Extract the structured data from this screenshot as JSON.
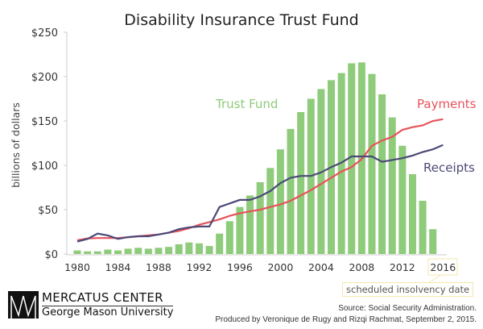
{
  "chart_data": {
    "type": "bar",
    "title": "Disability Insurance Trust Fund",
    "ylabel": "billions of dollars",
    "xlabel": "",
    "ylim": [
      0,
      250
    ],
    "yticks": [
      "$0",
      "$50",
      "$100",
      "$150",
      "$200",
      "$250"
    ],
    "ytick_values": [
      0,
      50,
      100,
      150,
      200,
      250
    ],
    "xticks": [
      "1980",
      "1984",
      "1988",
      "1992",
      "1996",
      "2000",
      "2004",
      "2008",
      "2012",
      "2016"
    ],
    "xtick_values": [
      1980,
      1984,
      1988,
      1992,
      1996,
      2000,
      2004,
      2008,
      2012,
      2016
    ],
    "grid": false,
    "series": [
      {
        "name": "Trust Fund",
        "type": "bar",
        "color": "#8ecb7a",
        "x": [
          1980,
          1981,
          1982,
          1983,
          1984,
          1985,
          1986,
          1987,
          1988,
          1989,
          1990,
          1991,
          1992,
          1993,
          1994,
          1995,
          1996,
          1997,
          1998,
          1999,
          2000,
          2001,
          2002,
          2003,
          2004,
          2005,
          2006,
          2007,
          2008,
          2009,
          2010,
          2011,
          2012,
          2013,
          2014,
          2015
        ],
        "values": [
          4,
          3,
          3,
          5,
          4,
          6,
          7,
          6,
          7,
          8,
          11,
          13,
          12,
          9,
          23,
          37,
          53,
          66,
          81,
          97,
          118,
          141,
          160,
          175,
          186,
          196,
          204,
          215,
          216,
          203,
          180,
          154,
          122,
          90,
          60,
          28
        ]
      },
      {
        "name": "Payments",
        "type": "line",
        "color": "#e8525a",
        "x": [
          1980,
          1981,
          1982,
          1983,
          1984,
          1985,
          1986,
          1987,
          1988,
          1989,
          1990,
          1991,
          1992,
          1993,
          1994,
          1995,
          1996,
          1997,
          1998,
          1999,
          2000,
          2001,
          2002,
          2003,
          2004,
          2005,
          2006,
          2007,
          2008,
          2009,
          2010,
          2011,
          2012,
          2013,
          2014,
          2015,
          2016
        ],
        "values": [
          15.5,
          17.5,
          18,
          18,
          18,
          19,
          20,
          21,
          22,
          24,
          26,
          29,
          33,
          36,
          39,
          43,
          46,
          48,
          50,
          53,
          56,
          60,
          66,
          72,
          79,
          86,
          93,
          98,
          107,
          122,
          128,
          132,
          140,
          143,
          145,
          150,
          152
        ]
      },
      {
        "name": "Receipts",
        "type": "line",
        "color": "#4b4a78",
        "x": [
          1980,
          1981,
          1982,
          1983,
          1984,
          1985,
          1986,
          1987,
          1988,
          1989,
          1990,
          1991,
          1992,
          1993,
          1994,
          1995,
          1996,
          1997,
          1998,
          1999,
          2000,
          2001,
          2002,
          2003,
          2004,
          2005,
          2006,
          2007,
          2008,
          2009,
          2010,
          2011,
          2012,
          2013,
          2014,
          2015,
          2016
        ],
        "values": [
          14,
          17,
          23,
          21,
          17,
          19,
          20,
          20,
          22,
          24,
          28,
          30,
          31,
          31,
          53,
          57,
          61,
          61,
          65,
          71,
          80,
          86,
          88,
          88,
          92,
          98,
          103,
          110,
          110,
          110,
          104,
          106,
          108,
          111,
          115,
          118,
          123
        ]
      }
    ],
    "annotations": {
      "insolvency": "scheduled insolvency date",
      "insolvency_year": 2016
    }
  },
  "logo": {
    "name": "MERCATUS CENTER",
    "sub": "George Mason University"
  },
  "source": {
    "line1": "Source: Social Security Administration.",
    "line2": "Produced by Veronique de Rugy and Rizqi Rachmat, September 2, 2015."
  }
}
